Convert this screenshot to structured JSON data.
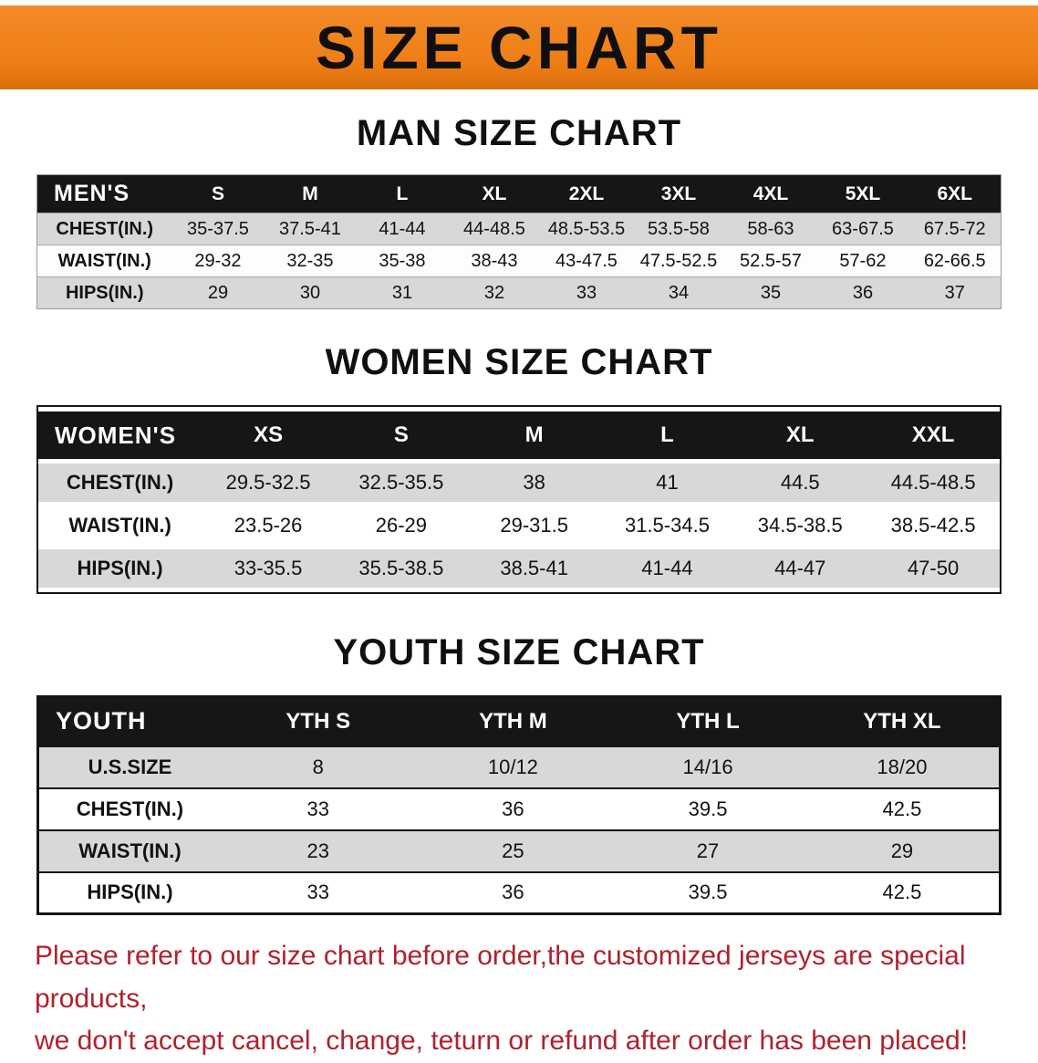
{
  "banner": {
    "title": "SIZE CHART",
    "background_color": "#EF7D15",
    "text_color": "#0F0F0F"
  },
  "men": {
    "heading": "MAN SIZE CHART",
    "table": {
      "header": [
        "MEN'S",
        "S",
        "M",
        "L",
        "XL",
        "2XL",
        "3XL",
        "4XL",
        "5XL",
        "6XL"
      ],
      "rows": [
        [
          "CHEST(IN.)",
          "35-37.5",
          "37.5-41",
          "41-44",
          "44-48.5",
          "48.5-53.5",
          "53.5-58",
          "58-63",
          "63-67.5",
          "67.5-72"
        ],
        [
          "WAIST(IN.)",
          "29-32",
          "32-35",
          "35-38",
          "38-43",
          "43-47.5",
          "47.5-52.5",
          "52.5-57",
          "57-62",
          "62-66.5"
        ],
        [
          "HIPS(IN.)",
          "29",
          "30",
          "31",
          "32",
          "33",
          "34",
          "35",
          "36",
          "37"
        ]
      ]
    }
  },
  "women": {
    "heading": "WOMEN SIZE CHART",
    "table": {
      "header": [
        "WOMEN'S",
        "XS",
        "S",
        "M",
        "L",
        "XL",
        "XXL"
      ],
      "rows": [
        [
          "CHEST(IN.)",
          "29.5-32.5",
          "32.5-35.5",
          "38",
          "41",
          "44.5",
          "44.5-48.5"
        ],
        [
          "WAIST(IN.)",
          "23.5-26",
          "26-29",
          "29-31.5",
          "31.5-34.5",
          "34.5-38.5",
          "38.5-42.5"
        ],
        [
          "HIPS(IN.)",
          "33-35.5",
          "35.5-38.5",
          "38.5-41",
          "41-44",
          "44-47",
          "47-50"
        ]
      ]
    }
  },
  "youth": {
    "heading": "YOUTH SIZE CHART",
    "table": {
      "header": [
        "YOUTH",
        "YTH S",
        "YTH M",
        "YTH L",
        "YTH XL"
      ],
      "rows": [
        [
          "U.S.SIZE",
          "8",
          "10/12",
          "14/16",
          "18/20"
        ],
        [
          "CHEST(IN.)",
          "33",
          "36",
          "39.5",
          "42.5"
        ],
        [
          "WAIST(IN.)",
          "23",
          "25",
          "27",
          "29"
        ],
        [
          "HIPS(IN.)",
          "33",
          "36",
          "39.5",
          "42.5"
        ]
      ]
    }
  },
  "disclaimer": {
    "line1": "Please refer to our size chart before order,the customized jerseys are special products,",
    "line2": "we don't accept cancel, change, teturn or refund after order has been placed!",
    "color": "#B0212E"
  }
}
